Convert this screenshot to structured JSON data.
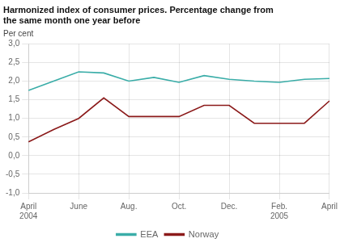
{
  "chart_data": {
    "type": "line",
    "title": "Harmonized index of consumer prices. Percentage change from\nthe same month one year before",
    "ylabel": "Per cent",
    "categories": [
      "April\n2004",
      null,
      "June",
      null,
      "Aug.",
      null,
      "Oct.",
      null,
      "Dec.",
      null,
      "Feb.\n2005",
      null,
      "April"
    ],
    "series": [
      {
        "name": "EEA",
        "color": "#3aada8",
        "values": [
          1.75,
          2.0,
          2.25,
          2.22,
          2.0,
          2.1,
          1.97,
          2.15,
          2.05,
          2.0,
          1.97,
          2.05,
          2.07
        ]
      },
      {
        "name": "Norway",
        "color": "#8b1a1a",
        "values": [
          0.37,
          0.7,
          1.0,
          1.55,
          1.05,
          1.05,
          1.05,
          1.35,
          1.35,
          0.87,
          0.87,
          0.87,
          1.47
        ]
      }
    ],
    "ylim": [
      -1.0,
      3.0
    ],
    "yticks": [
      {
        "value": -1.0,
        "label": "-1,0"
      },
      {
        "value": -0.5,
        "label": "-0,5"
      },
      {
        "value": 0.0,
        "label": "0,0"
      },
      {
        "value": 0.5,
        "label": "0,5"
      },
      {
        "value": 1.0,
        "label": "1,0"
      },
      {
        "value": 1.5,
        "label": "1,5"
      },
      {
        "value": 2.0,
        "label": "2,0"
      },
      {
        "value": 2.5,
        "label": "2,5"
      },
      {
        "value": 3.0,
        "label": "3,0"
      }
    ],
    "grid": true,
    "legend": "bottom"
  }
}
